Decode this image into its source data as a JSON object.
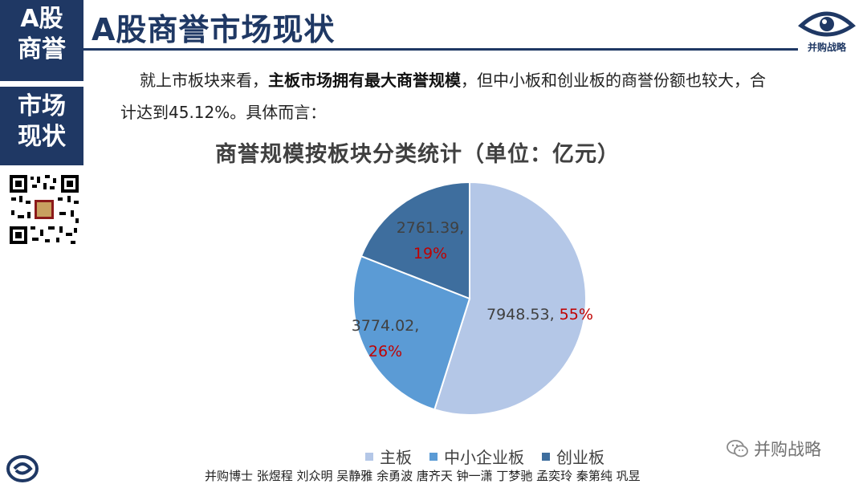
{
  "sidebar": {
    "block1": [
      "A股",
      "商誉"
    ],
    "block2": [
      "市场",
      "现状"
    ]
  },
  "header": {
    "title": "A股商誉市场现状",
    "brand_label": "并购战略"
  },
  "intro": {
    "part1": "就上市板块来看，",
    "bold": "主板市场拥有最大商誉规模",
    "part2": "，但中小板和创业板的商誉份额也较大，合",
    "line2": "计达到45.12%。具体而言："
  },
  "chart_data": {
    "type": "pie",
    "title": "商誉规模按板块分类统计（单位：亿元）",
    "slices": [
      {
        "name": "主板",
        "value": 7948.53,
        "percent": 55,
        "value_label": "7948.53",
        "percent_label": "55%",
        "color": "#b4c7e7"
      },
      {
        "name": "中小企业板",
        "value": 3774.02,
        "percent": 26,
        "value_label": "3774.02",
        "percent_label": "26%",
        "color": "#5b9bd5"
      },
      {
        "name": "创业板",
        "value": 2761.39,
        "percent": 19,
        "value_label": "2761.39",
        "percent_label": "19%",
        "color": "#3e6e9e"
      }
    ],
    "label_color": "#404040",
    "percent_color": "#c00000",
    "legend_position": "bottom"
  },
  "wechat_label": "并购战略",
  "footer": "并购博士 张煜程 刘众明 吴静雅 余勇波 唐齐天 钟一潇 丁梦驰 孟奕玲 秦第纯 巩昱",
  "colors": {
    "navy": "#1f3864"
  }
}
